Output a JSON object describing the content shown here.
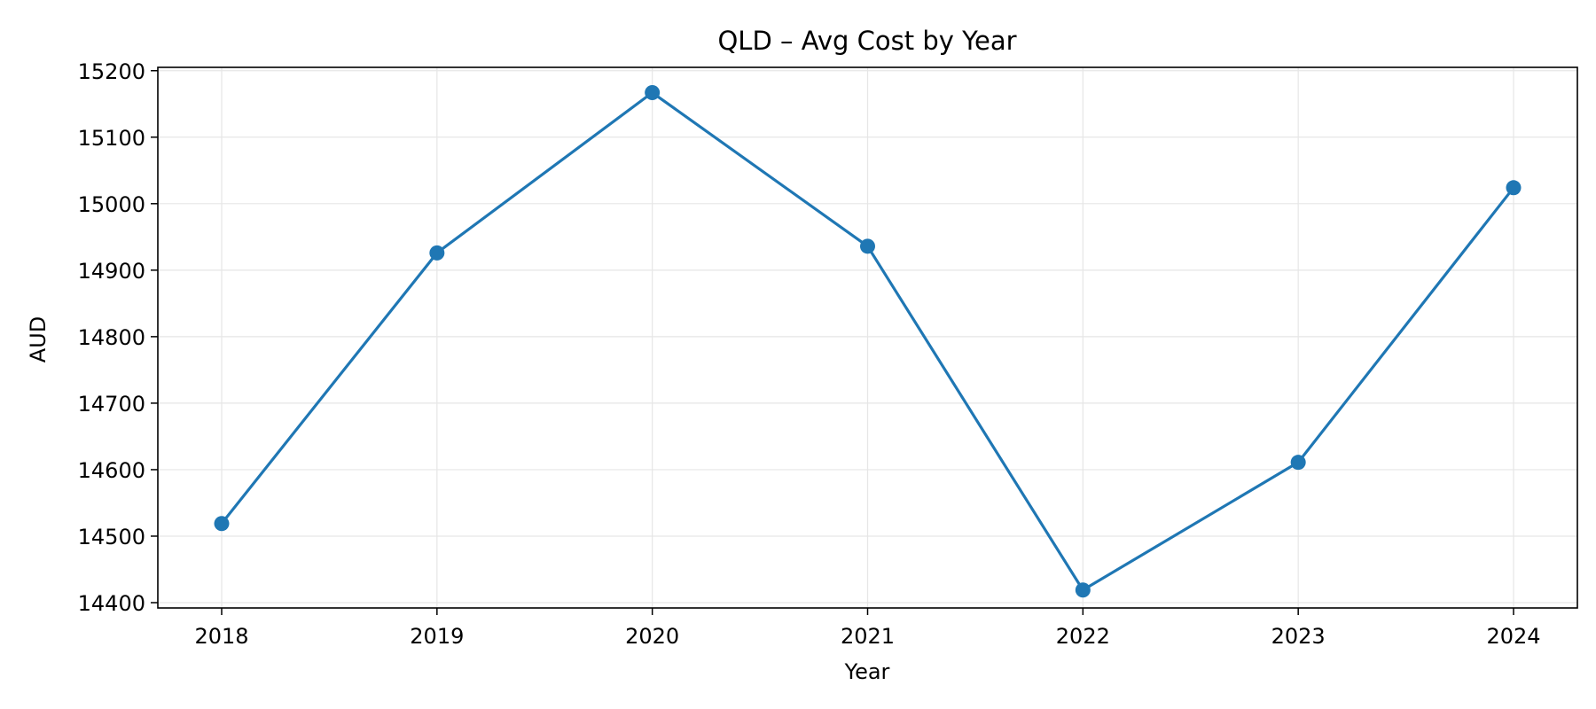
{
  "chart_data": {
    "type": "line",
    "title": "QLD – Avg Cost by Year",
    "xlabel": "Year",
    "ylabel": "AUD",
    "categories": [
      "2018",
      "2019",
      "2020",
      "2021",
      "2022",
      "2023",
      "2024"
    ],
    "series": [
      {
        "values": [
          14519,
          14926,
          15167,
          14936,
          14419,
          14611,
          15024
        ],
        "color": "#1f77b4",
        "marker": "circle"
      }
    ],
    "ylim": [
      14392,
      15205
    ],
    "yticks": [
      "14400",
      "14500",
      "14600",
      "14700",
      "14800",
      "14900",
      "15000",
      "15100",
      "15200"
    ],
    "grid": true,
    "legend": "none"
  }
}
